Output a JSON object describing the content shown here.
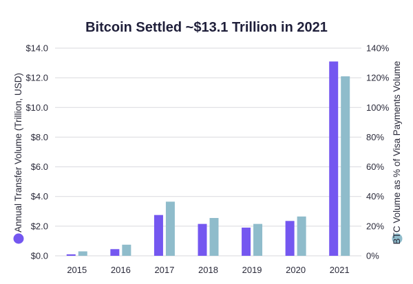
{
  "chart_data": {
    "type": "bar",
    "title": "Bitcoin Settled ~$13.1 Trillion in 2021",
    "categories": [
      "2015",
      "2016",
      "2017",
      "2018",
      "2019",
      "2020",
      "2021"
    ],
    "series": [
      {
        "name": "Annual Transfer Volume (Trillion, USD)",
        "axis": "left",
        "color": "#7457f0",
        "values": [
          0.1,
          0.45,
          2.75,
          2.15,
          1.9,
          2.35,
          13.1
        ]
      },
      {
        "name": "BTC Volume as % of Visa Payments Volume",
        "axis": "right",
        "color": "#8fbccb",
        "values": [
          3,
          7.5,
          36.5,
          25.5,
          21.5,
          26.5,
          121
        ]
      }
    ],
    "ylabel_left": "Annual Transfer Volume (Trillion, USD)",
    "ylabel_right": "BTC Volume as % of Visa Payments Volume",
    "ylim_left": [
      0,
      14
    ],
    "ylim_right": [
      0,
      140
    ],
    "yticks_left": [
      "$0.0",
      "$2.0",
      "$4.0",
      "$6.0",
      "$8.0",
      "$10.0",
      "$12.0",
      "$14.0"
    ],
    "yticks_right": [
      "0%",
      "20%",
      "40%",
      "60%",
      "80%",
      "100%",
      "120%",
      "140%"
    ],
    "grid": true
  }
}
